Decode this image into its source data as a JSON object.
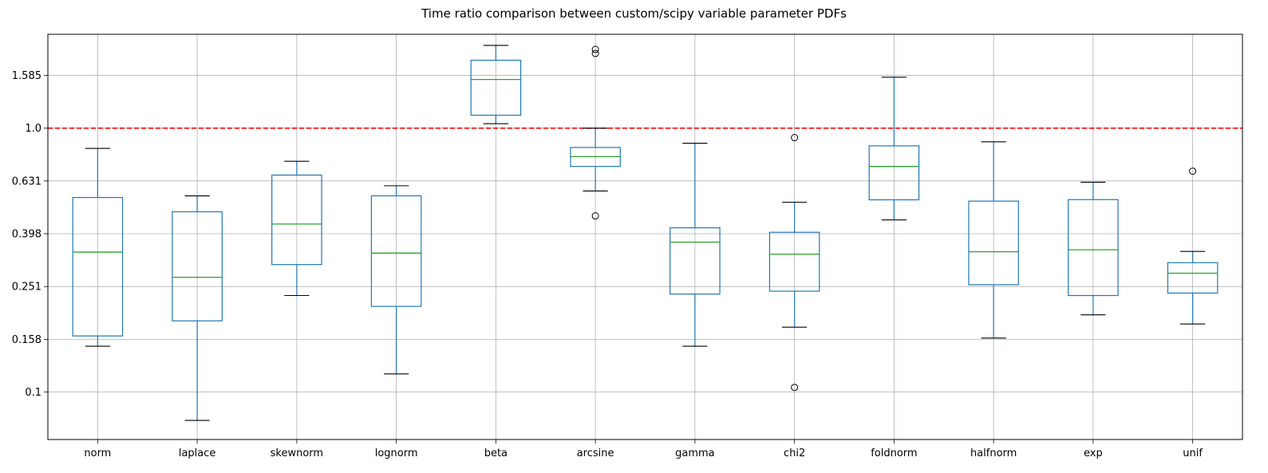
{
  "chart_data": {
    "type": "box",
    "title": "Time ratio comparison between custom/scipy variable parameter PDFs",
    "xlabel": "",
    "ylabel": "",
    "y_scale": "log10",
    "y_ticks": [
      0.1,
      0.158,
      0.251,
      0.398,
      0.631,
      1.0,
      1.585
    ],
    "y_tick_labels": [
      "0.1",
      "0.158",
      "0.251",
      "0.398",
      "0.631",
      "1.0",
      "1.585"
    ],
    "ylim": [
      0.066,
      2.27
    ],
    "grid": true,
    "reference_line": {
      "y": 1.0,
      "color": "#ff0000",
      "style": "dashed"
    },
    "colors": {
      "box": "#1f77b4",
      "median": "#2ca02c",
      "whisker": "#1f77b4",
      "cap": "#000000",
      "grid": "#b0b0b0",
      "flier": "#000000"
    },
    "categories": [
      "norm",
      "laplace",
      "skewnorm",
      "lognorm",
      "beta",
      "arcsine",
      "gamma",
      "chi2",
      "foldnorm",
      "halfnorm",
      "exp",
      "unif"
    ],
    "boxes": [
      {
        "name": "norm",
        "whislo": 0.149,
        "q1": 0.163,
        "med": 0.339,
        "q3": 0.546,
        "whishi": 0.838,
        "fliers": []
      },
      {
        "name": "laplace",
        "whislo": 0.078,
        "q1": 0.186,
        "med": 0.272,
        "q3": 0.482,
        "whishi": 0.554,
        "fliers": []
      },
      {
        "name": "skewnorm",
        "whislo": 0.232,
        "q1": 0.304,
        "med": 0.433,
        "q3": 0.664,
        "whishi": 0.749,
        "fliers": []
      },
      {
        "name": "lognorm",
        "whislo": 0.117,
        "q1": 0.211,
        "med": 0.336,
        "q3": 0.554,
        "whishi": 0.605,
        "fliers": []
      },
      {
        "name": "beta",
        "whislo": 1.04,
        "q1": 1.12,
        "med": 1.53,
        "q3": 1.81,
        "whishi": 2.06,
        "fliers": []
      },
      {
        "name": "arcsine",
        "whislo": 0.578,
        "q1": 0.716,
        "med": 0.78,
        "q3": 0.845,
        "whishi": 1.0,
        "fliers": [
          0.465,
          1.92,
          1.99
        ]
      },
      {
        "name": "gamma",
        "whislo": 0.149,
        "q1": 0.235,
        "med": 0.37,
        "q3": 0.419,
        "whishi": 0.877,
        "fliers": []
      },
      {
        "name": "chi2",
        "whislo": 0.176,
        "q1": 0.241,
        "med": 0.333,
        "q3": 0.403,
        "whishi": 0.524,
        "fliers": [
          0.104,
          0.921
        ]
      },
      {
        "name": "foldnorm",
        "whislo": 0.449,
        "q1": 0.535,
        "med": 0.716,
        "q3": 0.857,
        "whishi": 1.56,
        "fliers": []
      },
      {
        "name": "halfnorm",
        "whislo": 0.16,
        "q1": 0.255,
        "med": 0.34,
        "q3": 0.529,
        "whishi": 0.888,
        "fliers": []
      },
      {
        "name": "exp",
        "whislo": 0.196,
        "q1": 0.232,
        "med": 0.346,
        "q3": 0.536,
        "whishi": 0.624,
        "fliers": []
      },
      {
        "name": "unif",
        "whislo": 0.181,
        "q1": 0.237,
        "med": 0.282,
        "q3": 0.309,
        "whishi": 0.341,
        "fliers": [
          0.687
        ]
      }
    ]
  }
}
